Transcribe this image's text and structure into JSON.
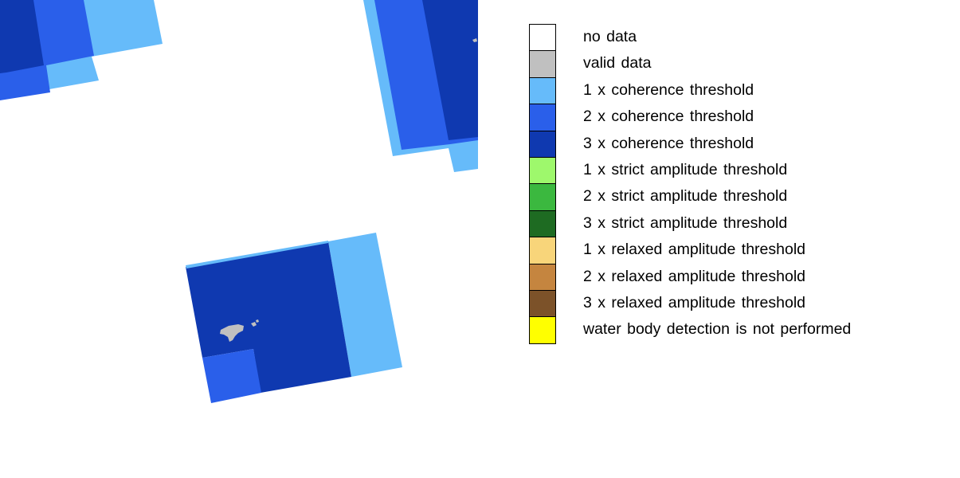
{
  "colors": {
    "no_data": "#ffffff",
    "valid_data": "#c0c0c0",
    "coherence_1x": "#66bbfa",
    "coherence_2x": "#2a5fea",
    "coherence_3x": "#0f39b0",
    "strict_1x": "#9ef86c",
    "strict_2x": "#3bb83f",
    "strict_3x": "#1e6b22",
    "relaxed_1x": "#f8d57a",
    "relaxed_2x": "#c5853f",
    "relaxed_3x": "#7c5229",
    "not_performed": "#ffff00"
  },
  "legend": {
    "items": [
      {
        "label": "no data",
        "color": "#ffffff"
      },
      {
        "label": "valid data",
        "color": "#c0c0c0"
      },
      {
        "label": "1 x coherence threshold",
        "color": "#66bbfa"
      },
      {
        "label": "2 x coherence threshold",
        "color": "#2a5fea"
      },
      {
        "label": "3 x coherence threshold",
        "color": "#0f39b0"
      },
      {
        "label": "1 x strict amplitude threshold",
        "color": "#9ef86c"
      },
      {
        "label": "2 x strict amplitude threshold",
        "color": "#3bb83f"
      },
      {
        "label": "3 x strict amplitude threshold",
        "color": "#1e6b22"
      },
      {
        "label": "1 x relaxed amplitude threshold",
        "color": "#f8d57a"
      },
      {
        "label": "2 x relaxed amplitude threshold",
        "color": "#c5853f"
      },
      {
        "label": "3 x relaxed amplitude threshold",
        "color": "#7c5229"
      },
      {
        "label": "water body detection is not performed",
        "color": "#ffff00"
      }
    ]
  }
}
